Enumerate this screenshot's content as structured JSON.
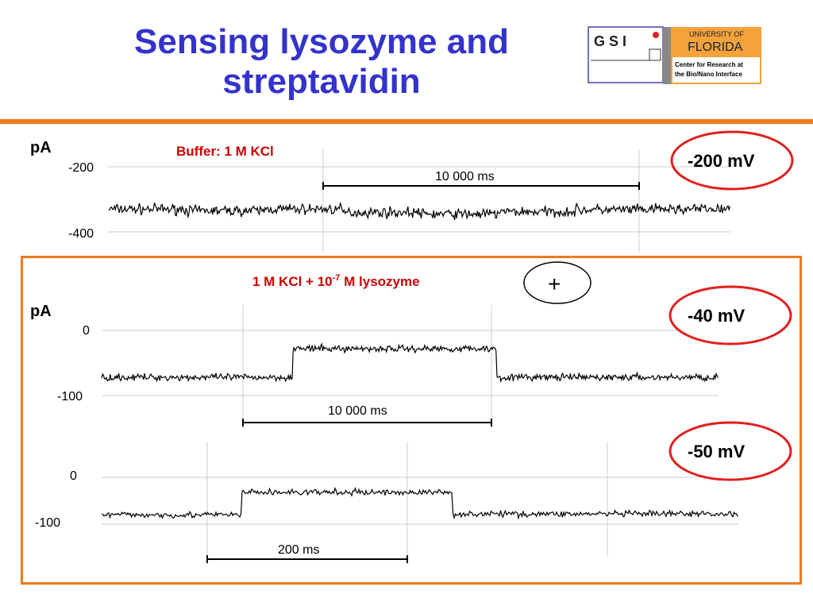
{
  "slide": {
    "title_line1": "Sensing lysozyme and",
    "title_line2": "streptavidin"
  },
  "logo": {
    "gsi_text": "G S I",
    "uf_line1": "UNIVERSITY OF",
    "uf_line2": "FLORIDA",
    "center_line1": "Center for Research at",
    "center_line2": "the Bio/Nano Interface"
  },
  "colors": {
    "title": "#3333cc",
    "accent_orange": "#f07a1c",
    "condition_red": "#cc0000",
    "ellipse_red": "#e02020",
    "trace": "#000000",
    "grid": "#cccccc"
  },
  "chart_data": [
    {
      "type": "line",
      "panel": "buffer",
      "ylabel": "pA",
      "condition": "Buffer: 1 M KCl",
      "voltage": "-200 mV",
      "y_ticks": [
        "-200",
        "-400"
      ],
      "scale_bar": "10 000 ms",
      "series_levels_pA": [
        -330,
        -335,
        -330,
        -340,
        -345,
        -338,
        -332,
        -330
      ],
      "noise_pA": 12
    },
    {
      "type": "line",
      "panel": "lysozyme",
      "ylabel": "pA",
      "condition_prefix": "1 M KCl + 10",
      "condition_exponent": "-7",
      "condition_suffix": " M lysozyme",
      "plus_symbol": "+",
      "voltage": "-40 mV",
      "y_ticks": [
        "0",
        "-100"
      ],
      "scale_bar": "10 000 ms",
      "segments_pA": [
        {
          "from": 0.0,
          "to": 0.31,
          "level": -72
        },
        {
          "from": 0.31,
          "to": 0.64,
          "level": -28
        },
        {
          "from": 0.64,
          "to": 1.0,
          "level": -72
        }
      ],
      "noise_pA": 4
    },
    {
      "type": "line",
      "panel": "lysozyme-fast",
      "voltage": "-50 mV",
      "y_ticks": [
        "0",
        "-100"
      ],
      "scale_bar": "200 ms",
      "segments_pA": [
        {
          "from": 0.0,
          "to": 0.22,
          "level": -80
        },
        {
          "from": 0.22,
          "to": 0.55,
          "level": -32
        },
        {
          "from": 0.55,
          "to": 1.0,
          "level": -78
        }
      ],
      "noise_pA": 5
    }
  ]
}
